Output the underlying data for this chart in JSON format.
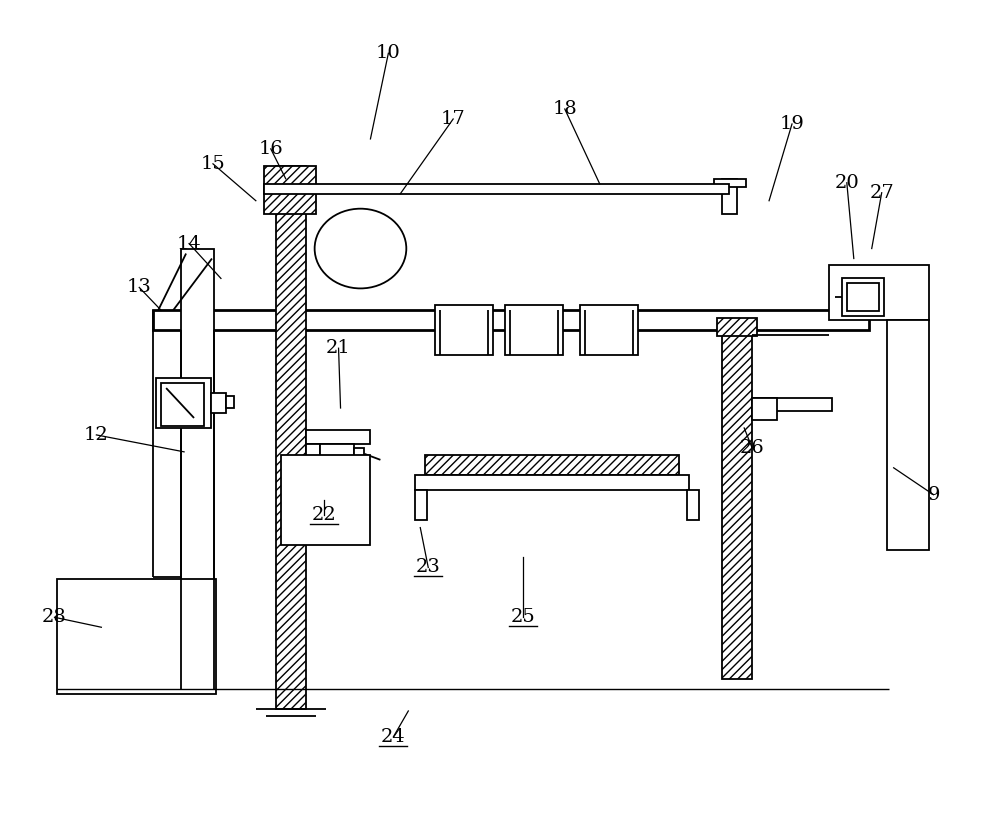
{
  "bg_color": "#ffffff",
  "line_color": "#000000",
  "lw": 1.3,
  "lw_thick": 2.0,
  "fig_width": 10.0,
  "fig_height": 8.17,
  "label_configs": [
    [
      "9",
      935,
      495,
      895,
      468,
      false
    ],
    [
      "10",
      388,
      52,
      370,
      138,
      false
    ],
    [
      "12",
      95,
      435,
      183,
      452,
      false
    ],
    [
      "13",
      138,
      287,
      160,
      310,
      false
    ],
    [
      "14",
      188,
      243,
      220,
      278,
      false
    ],
    [
      "15",
      212,
      163,
      255,
      200,
      false
    ],
    [
      "16",
      270,
      148,
      285,
      178,
      false
    ],
    [
      "17",
      453,
      118,
      400,
      193,
      false
    ],
    [
      "18",
      565,
      108,
      600,
      183,
      false
    ],
    [
      "19",
      793,
      123,
      770,
      200,
      false
    ],
    [
      "20",
      848,
      182,
      855,
      258,
      false
    ],
    [
      "21",
      338,
      348,
      340,
      408,
      false
    ],
    [
      "22",
      323,
      515,
      323,
      500,
      true
    ],
    [
      "23",
      428,
      568,
      420,
      528,
      true
    ],
    [
      "24",
      393,
      738,
      408,
      712,
      true
    ],
    [
      "25",
      523,
      618,
      523,
      558,
      true
    ],
    [
      "26",
      753,
      448,
      745,
      428,
      false
    ],
    [
      "27",
      883,
      192,
      873,
      248,
      false
    ],
    [
      "28",
      53,
      618,
      100,
      628,
      false
    ]
  ]
}
